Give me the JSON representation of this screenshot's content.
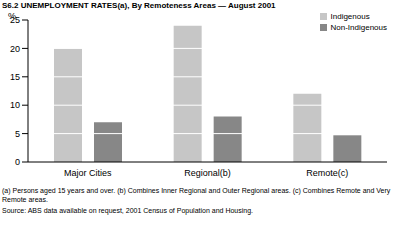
{
  "chart_data": {
    "type": "bar",
    "title": "S6.2 UNEMPLOYMENT RATES(a), By Remoteness Areas — August 2001",
    "ylabel": "%",
    "categories": [
      "Major Cities",
      "Regional(b)",
      "Remote(c)"
    ],
    "series": [
      {
        "name": "Indigenous",
        "color": "#c6c6c6",
        "values": [
          20,
          24,
          12
        ]
      },
      {
        "name": "Non-Indigenous",
        "color": "#878787",
        "values": [
          7,
          8,
          4.7
        ]
      }
    ],
    "ylim": [
      0,
      25
    ],
    "yticks": [
      0,
      5,
      10,
      15,
      20,
      25
    ],
    "grid": true,
    "legend": "top right",
    "annotations": [
      "(a) Persons aged 15 years and over. (b) Combines Inner Regional and Outer Regional areas. (c) Combines Remote and Very Remote areas.",
      "Source: ABS data available on request, 2001 Census of Population and Housing."
    ]
  }
}
